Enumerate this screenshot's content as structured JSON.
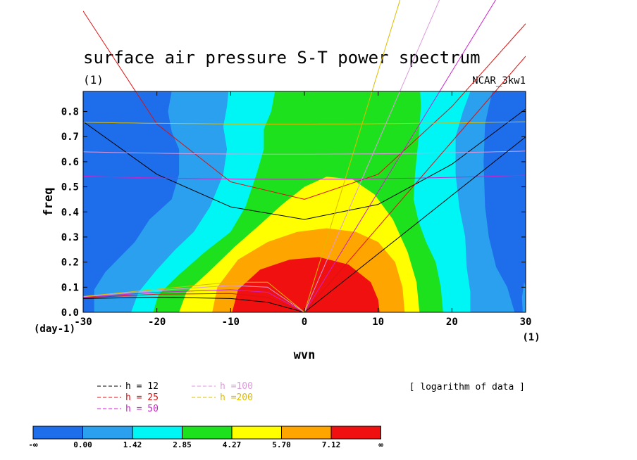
{
  "chart_data": {
    "type": "heatmap",
    "title": "surface air pressure S-T power spectrum",
    "subtitle": "(1)",
    "source_label": "NCAR_3kw1",
    "xlabel": "wvn",
    "ylabel": "freq",
    "x_unit": "(1)",
    "y_unit": "(day-1)",
    "xlim": [
      -30,
      30
    ],
    "ylim": [
      0,
      0.88
    ],
    "x_ticks": [
      -30,
      -20,
      -10,
      0,
      10,
      20,
      30
    ],
    "y_ticks": [
      0.0,
      0.1,
      0.2,
      0.3,
      0.4,
      0.5,
      0.6,
      0.7,
      0.8
    ],
    "note": "[ logarithm of data ]",
    "levels": [
      {
        "label": "-∞",
        "color": "#1e6eeb"
      },
      {
        "label": "0.00",
        "color": "#2aa0ee"
      },
      {
        "label": "1.42",
        "color": "#00f5f5"
      },
      {
        "label": "2.85",
        "color": "#1ee11e"
      },
      {
        "label": "4.27",
        "color": "#ffff00"
      },
      {
        "label": "5.70",
        "color": "#ffa500"
      },
      {
        "label": "7.12",
        "color": "#f01010"
      },
      {
        "label": "∞",
        "color": ""
      }
    ],
    "dispersion_legend": [
      {
        "label": "h = 12",
        "color": "#000000"
      },
      {
        "label": "h = 25",
        "color": "#dd1010"
      },
      {
        "label": "h = 50",
        "color": "#cc22cc"
      },
      {
        "label": "h =100",
        "color": "#dd99dd"
      },
      {
        "label": "h =200",
        "color": "#ddbb00"
      }
    ],
    "contour_regions": [
      {
        "level": 6,
        "label": "red core",
        "polygon": [
          [
            -9.8,
            0
          ],
          [
            -9,
            0.09
          ],
          [
            -6,
            0.17
          ],
          [
            -2,
            0.21
          ],
          [
            2,
            0.22
          ],
          [
            6,
            0.19
          ],
          [
            9,
            0.12
          ],
          [
            10,
            0.05
          ],
          [
            10.2,
            0
          ]
        ]
      },
      {
        "level": 5,
        "label": "orange",
        "polygon": [
          [
            -12.5,
            0
          ],
          [
            -11.8,
            0.1
          ],
          [
            -9,
            0.21
          ],
          [
            -5,
            0.28
          ],
          [
            -1,
            0.32
          ],
          [
            3,
            0.335
          ],
          [
            7,
            0.32
          ],
          [
            10,
            0.28
          ],
          [
            12.3,
            0.2
          ],
          [
            13.3,
            0.1
          ],
          [
            13.6,
            0
          ]
        ]
      },
      {
        "level": 4,
        "label": "yellow",
        "polygon": [
          [
            -17,
            0
          ],
          [
            -16,
            0.08
          ],
          [
            -13,
            0.16
          ],
          [
            -9.5,
            0.26
          ],
          [
            -6,
            0.35
          ],
          [
            -3,
            0.43
          ],
          [
            0,
            0.5
          ],
          [
            3,
            0.54
          ],
          [
            6.5,
            0.53
          ],
          [
            9.5,
            0.47
          ],
          [
            12,
            0.37
          ],
          [
            14,
            0.24
          ],
          [
            15.2,
            0.12
          ],
          [
            15.6,
            0
          ]
        ]
      },
      {
        "level": 3,
        "label": "green",
        "polygon": [
          [
            -20.5,
            0
          ],
          [
            -19.8,
            0.07
          ],
          [
            -17,
            0.15
          ],
          [
            -13.5,
            0.24
          ],
          [
            -10,
            0.32
          ],
          [
            -8,
            0.42
          ],
          [
            -6.5,
            0.55
          ],
          [
            -5.5,
            0.65
          ],
          [
            -5.5,
            0.73
          ],
          [
            -4.5,
            0.8
          ],
          [
            -4,
            0.88
          ],
          [
            15.7,
            0.88
          ],
          [
            15.8,
            0.82
          ],
          [
            15.5,
            0.7
          ],
          [
            15,
            0.55
          ],
          [
            14.8,
            0.45
          ],
          [
            15.5,
            0.36
          ],
          [
            16.5,
            0.28
          ],
          [
            17.8,
            0.2
          ],
          [
            18.5,
            0.1
          ],
          [
            18.8,
            0
          ]
        ]
      },
      {
        "level": 2,
        "label": "cyan",
        "polygon": [
          [
            -23.5,
            0
          ],
          [
            -22.5,
            0.08
          ],
          [
            -20,
            0.17
          ],
          [
            -17.5,
            0.25
          ],
          [
            -15,
            0.32
          ],
          [
            -12.8,
            0.42
          ],
          [
            -11,
            0.55
          ],
          [
            -10.5,
            0.65
          ],
          [
            -11,
            0.74
          ],
          [
            -10.5,
            0.82
          ],
          [
            -10.3,
            0.88
          ],
          [
            22.5,
            0.88
          ],
          [
            21.5,
            0.8
          ],
          [
            20.5,
            0.7
          ],
          [
            20.5,
            0.55
          ],
          [
            21,
            0.42
          ],
          [
            21.8,
            0.3
          ],
          [
            22,
            0.18
          ],
          [
            22.5,
            0.08
          ],
          [
            22.5,
            0
          ]
        ]
      },
      {
        "level": 1,
        "label": "light blue",
        "polygon": [
          [
            -28.5,
            0
          ],
          [
            -28.5,
            0.09
          ],
          [
            -27,
            0.16
          ],
          [
            -25,
            0.22
          ],
          [
            -23,
            0.28
          ],
          [
            -21,
            0.37
          ],
          [
            -18,
            0.45
          ],
          [
            -17,
            0.55
          ],
          [
            -17,
            0.65
          ],
          [
            -18,
            0.72
          ],
          [
            -18.5,
            0.8
          ],
          [
            -18,
            0.88
          ],
          [
            25.5,
            0.88
          ],
          [
            25,
            0.82
          ],
          [
            24.5,
            0.75
          ],
          [
            24.3,
            0.6
          ],
          [
            24.5,
            0.42
          ],
          [
            25,
            0.3
          ],
          [
            26,
            0.18
          ],
          [
            27.5,
            0.1
          ],
          [
            28.5,
            0
          ],
          [
            30,
            0
          ],
          [
            30,
            0.1
          ],
          [
            29.8,
            0.12
          ],
          [
            29.5,
            0.06
          ],
          [
            29.6,
            0
          ]
        ]
      }
    ],
    "dispersion_curves": [
      {
        "name": "h = 12",
        "color": "#000000",
        "type": "antisymmetric_upper",
        "vertex": [
          0,
          0.37
        ],
        "x": [
          -30,
          -20,
          -10,
          0,
          10,
          20,
          30
        ],
        "y": [
          0.76,
          0.55,
          0.42,
          0.37,
          0.43,
          0.59,
          0.81
        ]
      },
      {
        "name": "h = 25",
        "color": "#dd1010",
        "type": "antisymmetric_upper",
        "vertex": [
          -2,
          0.44
        ],
        "x": [
          -30,
          -20,
          -10,
          0,
          10,
          20,
          30
        ],
        "y": [
          1.2,
          0.75,
          0.52,
          0.45,
          0.55,
          0.82,
          1.15
        ]
      },
      {
        "name": "h = 50",
        "color": "#cc22cc",
        "type": "antisymmetric_upper",
        "vertex": [
          -2,
          0.53
        ]
      },
      {
        "name": "h =100",
        "color": "#dd99dd",
        "type": "antisymmetric_upper",
        "vertex": [
          -2,
          0.63
        ]
      },
      {
        "name": "h =200",
        "color": "#ddbb00",
        "type": "antisymmetric_upper",
        "vertex": [
          -2,
          0.75
        ]
      },
      {
        "name": "h = 12",
        "color": "#000000",
        "type": "kelvin",
        "slope": 0.0233
      },
      {
        "name": "h = 25",
        "color": "#dd1010",
        "type": "kelvin",
        "slope": 0.034
      },
      {
        "name": "h = 50",
        "color": "#cc22cc",
        "type": "kelvin",
        "slope": 0.048
      },
      {
        "name": "h =100",
        "color": "#dd99dd",
        "type": "kelvin",
        "slope": 0.068
      },
      {
        "name": "h =200",
        "color": "#ddbb00",
        "type": "kelvin",
        "slope": 0.096
      },
      {
        "name": "h = 12",
        "color": "#000000",
        "type": "rossby",
        "x": [
          -30,
          -20,
          -10,
          -5,
          0
        ],
        "y": [
          0.055,
          0.06,
          0.055,
          0.04,
          0
        ]
      },
      {
        "name": "h = 25",
        "color": "#dd1010",
        "type": "rossby",
        "x": [
          -30,
          -20,
          -10,
          -5,
          0
        ],
        "y": [
          0.058,
          0.072,
          0.075,
          0.06,
          0
        ]
      },
      {
        "name": "h = 50",
        "color": "#cc22cc",
        "type": "rossby",
        "x": [
          -30,
          -20,
          -10,
          -5,
          0
        ],
        "y": [
          0.06,
          0.08,
          0.09,
          0.08,
          0
        ]
      },
      {
        "name": "h =100",
        "color": "#dd99dd",
        "type": "rossby",
        "x": [
          -30,
          -20,
          -10,
          -5,
          0
        ],
        "y": [
          0.062,
          0.087,
          0.107,
          0.1,
          0
        ]
      },
      {
        "name": "h =200",
        "color": "#ddbb00",
        "type": "rossby",
        "x": [
          -30,
          -20,
          -10,
          -5,
          0
        ],
        "y": [
          0.063,
          0.092,
          0.12,
          0.12,
          0
        ]
      }
    ]
  }
}
